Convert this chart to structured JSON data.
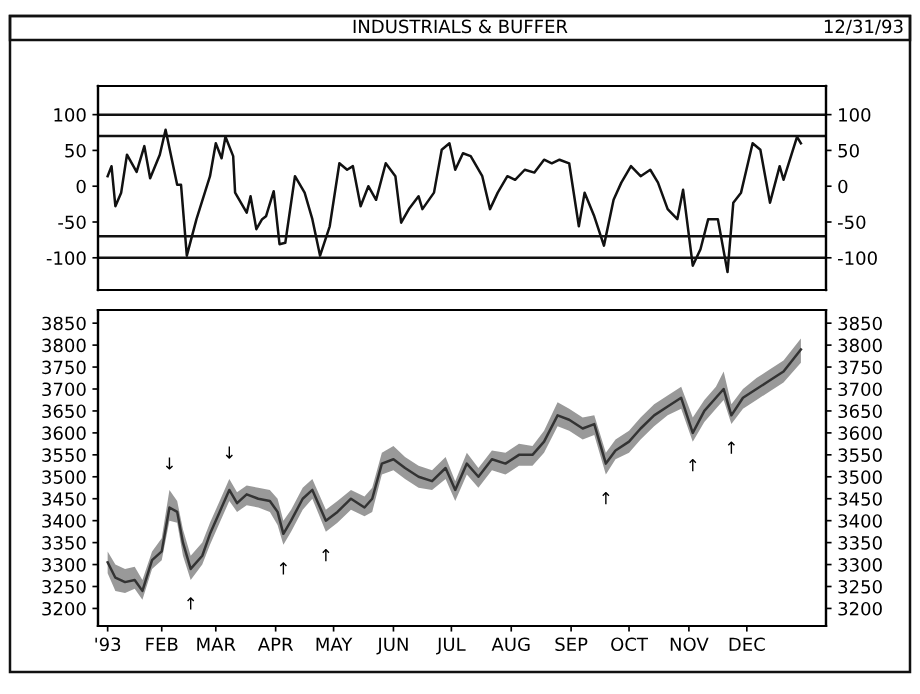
{
  "chart_data": [
    {
      "type": "line",
      "title": "INDUSTRIALS & BUFFER",
      "annotations": [
        "12/31/93"
      ],
      "series": [
        {
          "color": "#111111",
          "x": [
            "1993-01-04",
            "1993-01-06",
            "1993-01-08",
            "1993-01-11",
            "1993-01-14",
            "1993-01-19",
            "1993-01-23",
            "1993-01-26",
            "1993-01-31",
            "1993-02-03",
            "1993-02-09",
            "1993-02-11",
            "1993-02-14",
            "1993-02-19",
            "1993-02-26",
            "1993-03-01",
            "1993-03-04",
            "1993-03-06",
            "1993-03-10",
            "1993-03-11",
            "1993-03-17",
            "1993-03-19",
            "1993-03-22",
            "1993-03-25",
            "1993-03-27",
            "1993-03-31",
            "1993-04-03",
            "1993-04-06",
            "1993-04-11",
            "1993-04-16",
            "1993-04-20",
            "1993-04-24",
            "1993-04-29",
            "1993-05-04",
            "1993-05-08",
            "1993-05-11",
            "1993-05-15",
            "1993-05-19",
            "1993-05-23",
            "1993-05-28",
            "1993-06-02",
            "1993-06-05",
            "1993-06-09",
            "1993-06-14",
            "1993-06-16",
            "1993-06-22",
            "1993-06-26",
            "1993-06-30",
            "1993-07-03",
            "1993-07-07",
            "1993-07-11",
            "1993-07-17",
            "1993-07-21",
            "1993-07-25",
            "1993-07-30",
            "1993-08-03",
            "1993-08-08",
            "1993-08-13",
            "1993-08-18",
            "1993-08-22",
            "1993-08-26",
            "1993-08-31",
            "1993-09-05",
            "1993-09-08",
            "1993-09-13",
            "1993-09-18",
            "1993-09-23",
            "1993-09-27",
            "1993-10-02",
            "1993-10-07",
            "1993-10-12",
            "1993-10-16",
            "1993-10-21",
            "1993-10-26",
            "1993-10-29",
            "1993-11-03",
            "1993-11-07",
            "1993-11-11",
            "1993-11-16",
            "1993-11-21",
            "1993-11-24",
            "1993-11-28",
            "1993-12-04",
            "1993-12-08",
            "1993-12-13",
            "1993-12-18",
            "1993-12-20",
            "1993-12-27",
            "1993-12-29"
          ],
          "values": [
            14,
            28,
            -28,
            -9,
            44,
            20,
            56,
            11,
            44,
            79,
            2,
            2,
            -97,
            -46,
            14,
            60,
            39,
            69,
            42,
            -9,
            -37,
            -14,
            -60,
            -46,
            -42,
            -7,
            -81,
            -79,
            14,
            -9,
            -46,
            -97,
            -56,
            32,
            23,
            28,
            -28,
            0,
            -19,
            32,
            14,
            -51,
            -32,
            -14,
            -32,
            -9,
            51,
            60,
            23,
            46,
            42,
            14,
            -32,
            -9,
            14,
            9,
            23,
            19,
            37,
            32,
            37,
            32,
            -56,
            -9,
            -42,
            -83,
            -19,
            5,
            28,
            14,
            23,
            5,
            -32,
            -46,
            -5,
            -111,
            -88,
            -46,
            -46,
            -120,
            -23,
            -9,
            60,
            51,
            -23,
            28,
            9,
            69,
            60
          ]
        }
      ],
      "xlim": [
        "1992-12-30",
        "1994-01-11"
      ],
      "ylim": [
        -145,
        140
      ],
      "yticks": [
        -100,
        -50,
        0,
        50,
        100
      ],
      "y2lim": [
        -145,
        140
      ],
      "y2ticks": [
        -100,
        -50,
        0,
        50,
        100
      ],
      "tick_labels": "y",
      "grid": false,
      "legend": false,
      "ref_lines": [
        {
          "axis": "y",
          "value": 100,
          "color": "#111111"
        },
        {
          "axis": "y",
          "value": 70,
          "color": "#111111"
        },
        {
          "axis": "y",
          "value": -70,
          "color": "#111111"
        },
        {
          "axis": "y",
          "value": -100,
          "color": "#111111"
        }
      ]
    },
    {
      "type": "line",
      "series": [
        {
          "color": "#333333",
          "x": [
            "1993-01-04",
            "1993-01-08",
            "1993-01-13",
            "1993-01-18",
            "1993-01-22",
            "1993-01-27",
            "1993-02-01",
            "1993-02-05",
            "1993-02-09",
            "1993-02-12",
            "1993-02-16",
            "1993-02-22",
            "1993-02-26",
            "1993-03-03",
            "1993-03-08",
            "1993-03-12",
            "1993-03-17",
            "1993-03-23",
            "1993-03-29",
            "1993-04-02",
            "1993-04-05",
            "1993-04-09",
            "1993-04-15",
            "1993-04-20",
            "1993-04-27",
            "1993-05-03",
            "1993-05-10",
            "1993-05-17",
            "1993-05-21",
            "1993-05-26",
            "1993-06-01",
            "1993-06-07",
            "1993-06-14",
            "1993-06-21",
            "1993-06-28",
            "1993-07-03",
            "1993-07-09",
            "1993-07-15",
            "1993-07-22",
            "1993-07-29",
            "1993-08-05",
            "1993-08-12",
            "1993-08-18",
            "1993-08-25",
            "1993-08-31",
            "1993-09-07",
            "1993-09-13",
            "1993-09-19",
            "1993-09-24",
            "1993-10-01",
            "1993-10-07",
            "1993-10-14",
            "1993-10-21",
            "1993-10-28",
            "1993-11-03",
            "1993-11-09",
            "1993-11-15",
            "1993-11-19",
            "1993-11-23",
            "1993-11-29",
            "1993-12-06",
            "1993-12-13",
            "1993-12-20",
            "1993-12-29"
          ],
          "values": [
            3305,
            3270,
            3260,
            3265,
            3240,
            3310,
            3330,
            3430,
            3420,
            3350,
            3290,
            3320,
            3370,
            3420,
            3470,
            3440,
            3460,
            3450,
            3445,
            3420,
            3370,
            3400,
            3450,
            3470,
            3400,
            3420,
            3450,
            3430,
            3450,
            3530,
            3540,
            3520,
            3500,
            3490,
            3520,
            3470,
            3530,
            3500,
            3540,
            3530,
            3550,
            3550,
            3580,
            3640,
            3630,
            3610,
            3620,
            3530,
            3560,
            3580,
            3610,
            3640,
            3660,
            3680,
            3600,
            3650,
            3680,
            3700,
            3640,
            3680,
            3700,
            3720,
            3740,
            3790
          ],
          "lower": [
            3280,
            3240,
            3235,
            3245,
            3220,
            3290,
            3310,
            3400,
            3395,
            3320,
            3265,
            3300,
            3345,
            3395,
            3445,
            3420,
            3435,
            3430,
            3420,
            3390,
            3345,
            3375,
            3425,
            3450,
            3375,
            3395,
            3425,
            3410,
            3420,
            3505,
            3515,
            3495,
            3475,
            3470,
            3495,
            3445,
            3505,
            3475,
            3515,
            3505,
            3525,
            3525,
            3555,
            3615,
            3605,
            3585,
            3595,
            3505,
            3540,
            3555,
            3585,
            3615,
            3640,
            3655,
            3580,
            3625,
            3655,
            3675,
            3620,
            3655,
            3675,
            3695,
            3715,
            3760
          ],
          "upper": [
            3330,
            3300,
            3290,
            3295,
            3265,
            3330,
            3360,
            3470,
            3445,
            3380,
            3320,
            3350,
            3395,
            3445,
            3495,
            3465,
            3480,
            3475,
            3470,
            3450,
            3400,
            3425,
            3475,
            3495,
            3425,
            3445,
            3470,
            3455,
            3475,
            3555,
            3570,
            3545,
            3525,
            3515,
            3545,
            3490,
            3555,
            3520,
            3560,
            3555,
            3575,
            3570,
            3605,
            3670,
            3655,
            3635,
            3640,
            3555,
            3585,
            3605,
            3635,
            3665,
            3685,
            3705,
            3635,
            3675,
            3705,
            3740,
            3665,
            3700,
            3725,
            3745,
            3765,
            3815
          ]
        }
      ],
      "annotations": [
        {
          "text": "↓",
          "x": "1993-02-05",
          "y": 3470
        },
        {
          "text": "↓",
          "x": "1993-03-08",
          "y": 3495
        },
        {
          "text": "↑",
          "x": "1993-02-16",
          "y": 3265
        },
        {
          "text": "↑",
          "x": "1993-04-05",
          "y": 3345
        },
        {
          "text": "↑",
          "x": "1993-04-27",
          "y": 3375
        },
        {
          "text": "↑",
          "x": "1993-09-19",
          "y": 3505
        },
        {
          "text": "↑",
          "x": "1993-11-03",
          "y": 3580
        },
        {
          "text": "↑",
          "x": "1993-11-23",
          "y": 3620
        }
      ],
      "xlim": [
        "1992-12-30",
        "1994-01-11"
      ],
      "xticks": [
        {
          "value": "1993-01-04",
          "label": "'93"
        },
        {
          "value": "1993-02-01",
          "label": "FEB"
        },
        {
          "value": "1993-03-01",
          "label": "MAR"
        },
        {
          "value": "1993-04-01",
          "label": "APR"
        },
        {
          "value": "1993-05-01",
          "label": "MAY"
        },
        {
          "value": "1993-06-01",
          "label": "JUN"
        },
        {
          "value": "1993-07-01",
          "label": "JUL"
        },
        {
          "value": "1993-08-01",
          "label": "AUG"
        },
        {
          "value": "1993-09-01",
          "label": "SEP"
        },
        {
          "value": "1993-10-01",
          "label": "OCT"
        },
        {
          "value": "1993-11-01",
          "label": "NOV"
        },
        {
          "value": "1993-12-01",
          "label": "DEC"
        }
      ],
      "ylim": [
        3160,
        3880
      ],
      "yticks": [
        3200,
        3250,
        3300,
        3350,
        3400,
        3450,
        3500,
        3550,
        3600,
        3650,
        3700,
        3750,
        3800,
        3850
      ],
      "y2lim": [
        3160,
        3880
      ],
      "y2ticks": [
        3200,
        3250,
        3300,
        3350,
        3400,
        3450,
        3500,
        3550,
        3600,
        3650,
        3700,
        3750,
        3800,
        3850
      ],
      "grid": false,
      "legend": false
    }
  ]
}
